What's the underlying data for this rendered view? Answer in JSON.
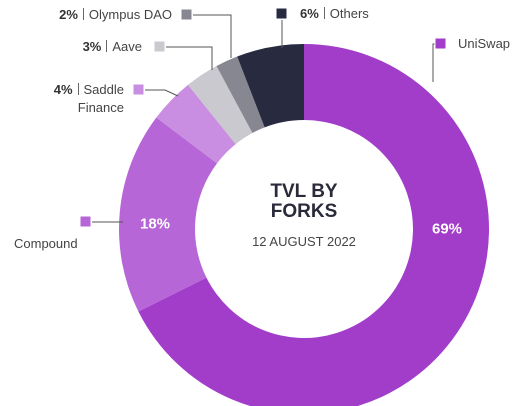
{
  "chart_data": {
    "type": "donut",
    "title": "TVL BY FORKS",
    "subtitle": "12 AUGUST 2022",
    "categories": [
      "UniSwap",
      "Compound",
      "Saddle Finance",
      "Aave",
      "Olympus DAO",
      "Others"
    ],
    "values": [
      69,
      18,
      4,
      3,
      2,
      6
    ],
    "value_labels": [
      "69%",
      "18%",
      "4%",
      "3%",
      "2%",
      "6%"
    ],
    "colors": [
      "#a23dca",
      "#b666d7",
      "#c98ee1",
      "#c9c9cf",
      "#878791",
      "#282b40"
    ]
  }
}
